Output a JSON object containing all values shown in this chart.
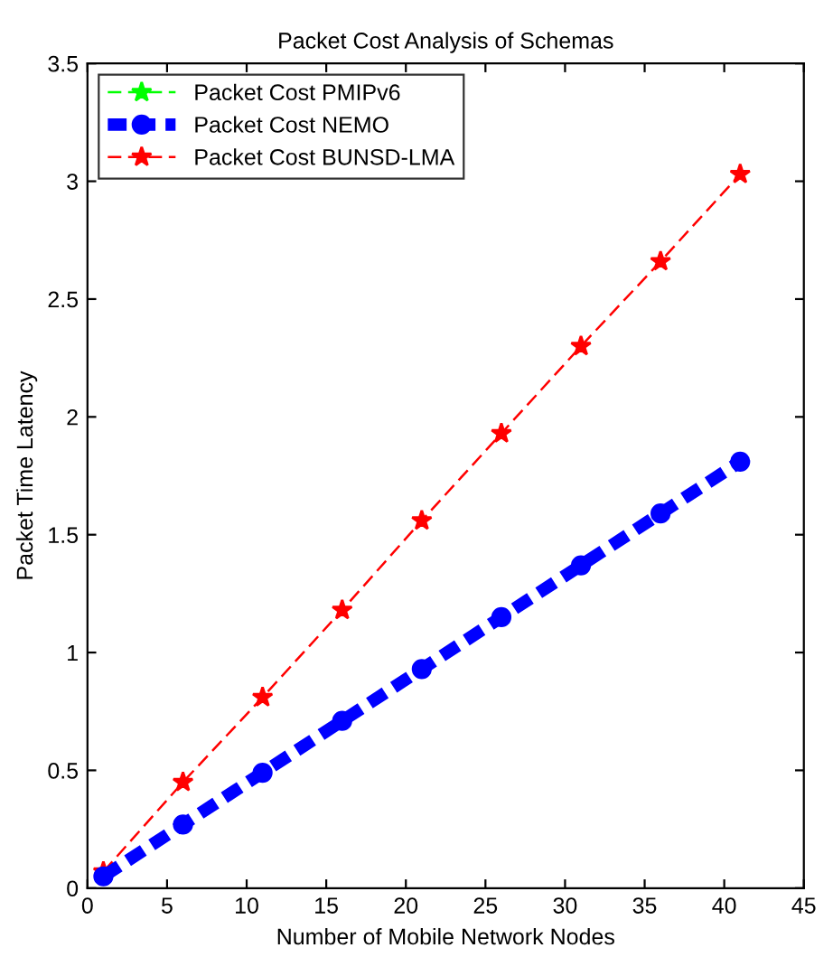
{
  "chart_data": {
    "type": "line",
    "title": "Packet Cost Analysis of Schemas",
    "xlabel": "Number of Mobile Network Nodes",
    "ylabel": "Packet Time Latency",
    "x": [
      1,
      6,
      11,
      16,
      21,
      26,
      31,
      36,
      41
    ],
    "series": [
      {
        "name": "Packet Cost PMIPv6",
        "color": "#00ff00",
        "marker": "star",
        "line_style": "dashed",
        "values": [
          null,
          null,
          null,
          null,
          null,
          null,
          null,
          null,
          null
        ]
      },
      {
        "name": "Packet Cost NEMO",
        "color": "#0000ff",
        "marker": "circle",
        "line_style": "dashed",
        "values": [
          0.05,
          0.27,
          0.49,
          0.71,
          0.93,
          1.15,
          1.37,
          1.59,
          1.81
        ]
      },
      {
        "name": "Packet Cost BUNSD-LMA",
        "color": "#ff0000",
        "marker": "star",
        "line_style": "dashed",
        "values": [
          0.07,
          0.45,
          0.81,
          1.18,
          1.56,
          1.93,
          2.3,
          2.66,
          3.03
        ]
      }
    ],
    "xlim": [
      0,
      45
    ],
    "xticks": [
      0,
      5,
      10,
      15,
      20,
      25,
      30,
      35,
      40,
      45
    ],
    "ylim": [
      0,
      3.5
    ],
    "yticks": [
      0,
      0.5,
      1,
      1.5,
      2,
      2.5,
      3,
      3.5
    ],
    "grid": false,
    "legend": "top left"
  }
}
